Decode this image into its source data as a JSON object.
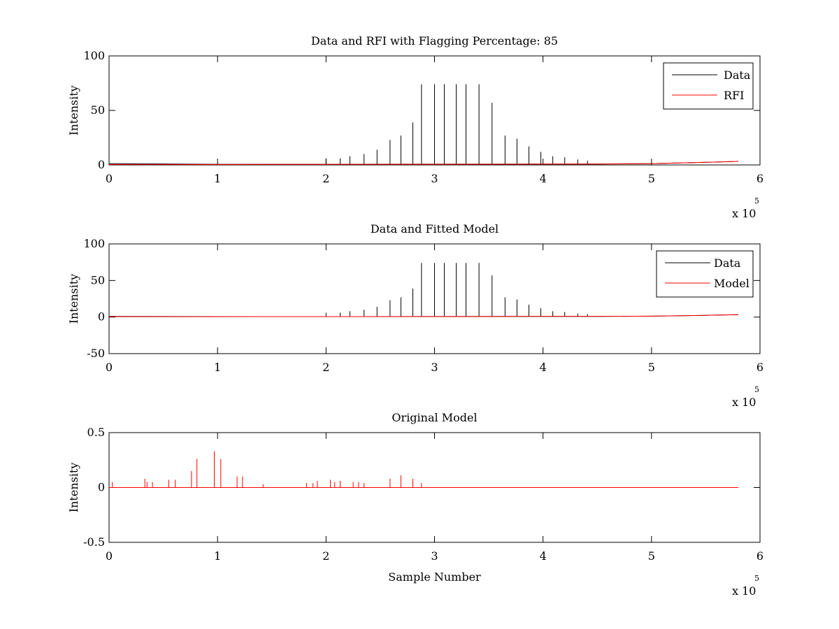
{
  "chart_data": [
    {
      "type": "line",
      "title": "Data and RFI with Flagging Percentage: 85",
      "xlabel": "",
      "ylabel": "Intensity",
      "xlim": [
        0,
        600000
      ],
      "ylim": [
        0,
        100
      ],
      "xticks": [
        0,
        1,
        2,
        3,
        4,
        5,
        6
      ],
      "xtick_labels": [
        "0",
        "1",
        "2",
        "3",
        "4",
        "5",
        "6"
      ],
      "yticks": [
        0,
        50,
        100
      ],
      "ytick_labels": [
        "0",
        "50",
        "100"
      ],
      "x_exponent": "x 10",
      "x_exponent_power": "5",
      "legend_position": "top-right",
      "series": [
        {
          "name": "Data",
          "color": "#000000",
          "baseline": [
            [
              0,
              1.2
            ],
            [
              100000,
              0.6
            ],
            [
              200000,
              0.6
            ],
            [
              300000,
              0.7
            ],
            [
              400000,
              0.8
            ],
            [
              450000,
              0.9
            ],
            [
              500000,
              1.2
            ],
            [
              550000,
              2.4
            ],
            [
              580000,
              3.3
            ]
          ],
          "spikes": [
            [
              200000,
              6
            ],
            [
              213000,
              6
            ],
            [
              222000,
              8
            ],
            [
              235000,
              10
            ],
            [
              247000,
              14
            ],
            [
              259000,
              23
            ],
            [
              269000,
              27
            ],
            [
              280000,
              39
            ],
            [
              288000,
              74
            ],
            [
              300000,
              74
            ],
            [
              309000,
              74
            ],
            [
              320000,
              74
            ],
            [
              329000,
              74
            ],
            [
              341000,
              74
            ],
            [
              353000,
              57
            ],
            [
              365000,
              27
            ],
            [
              376000,
              24
            ],
            [
              387000,
              17
            ],
            [
              398000,
              12
            ],
            [
              409000,
              8
            ],
            [
              420000,
              7
            ],
            [
              432000,
              5
            ],
            [
              441000,
              4
            ]
          ]
        },
        {
          "name": "RFI",
          "color": "#ff0000",
          "baseline": [
            [
              0,
              0.4
            ],
            [
              100000,
              0.4
            ],
            [
              200000,
              0.5
            ],
            [
              300000,
              0.6
            ],
            [
              400000,
              0.7
            ],
            [
              450000,
              0.8
            ],
            [
              500000,
              1.2
            ],
            [
              550000,
              2.4
            ],
            [
              580000,
              3.3
            ]
          ],
          "spikes": []
        }
      ]
    },
    {
      "type": "line",
      "title": "Data and Fitted Model",
      "xlabel": "",
      "ylabel": "Intensity",
      "xlim": [
        0,
        600000
      ],
      "ylim": [
        -50,
        100
      ],
      "xticks": [
        0,
        1,
        2,
        3,
        4,
        5,
        6
      ],
      "xtick_labels": [
        "0",
        "1",
        "2",
        "3",
        "4",
        "5",
        "6"
      ],
      "yticks": [
        -50,
        0,
        50,
        100
      ],
      "ytick_labels": [
        "-50",
        "0",
        "50",
        "100"
      ],
      "x_exponent": "x 10",
      "x_exponent_power": "5",
      "legend_position": "top-right",
      "series": [
        {
          "name": "Data",
          "color": "#000000",
          "baseline": [
            [
              0,
              1.0
            ],
            [
              100000,
              0.6
            ],
            [
              200000,
              0.6
            ],
            [
              300000,
              0.7
            ],
            [
              400000,
              0.8
            ],
            [
              450000,
              0.9
            ],
            [
              500000,
              1.2
            ],
            [
              550000,
              2.4
            ],
            [
              580000,
              3.3
            ]
          ],
          "spikes": [
            [
              200000,
              6
            ],
            [
              213000,
              6
            ],
            [
              222000,
              8
            ],
            [
              235000,
              10
            ],
            [
              247000,
              14
            ],
            [
              259000,
              23
            ],
            [
              269000,
              27
            ],
            [
              280000,
              39
            ],
            [
              288000,
              74
            ],
            [
              300000,
              74
            ],
            [
              309000,
              74
            ],
            [
              320000,
              74
            ],
            [
              329000,
              74
            ],
            [
              341000,
              74
            ],
            [
              353000,
              57
            ],
            [
              365000,
              27
            ],
            [
              376000,
              24
            ],
            [
              387000,
              17
            ],
            [
              398000,
              12
            ],
            [
              409000,
              8
            ],
            [
              420000,
              7
            ],
            [
              432000,
              5
            ],
            [
              441000,
              4
            ]
          ]
        },
        {
          "name": "Model",
          "color": "#ff0000",
          "baseline": [
            [
              0,
              0.6
            ],
            [
              100000,
              0.5
            ],
            [
              200000,
              0.6
            ],
            [
              300000,
              0.7
            ],
            [
              400000,
              0.8
            ],
            [
              450000,
              0.9
            ],
            [
              500000,
              1.2
            ],
            [
              550000,
              2.4
            ],
            [
              580000,
              3.3
            ]
          ],
          "spikes": []
        }
      ]
    },
    {
      "type": "line",
      "title": "Original Model",
      "xlabel": "Sample Number",
      "ylabel": "Intensity",
      "xlim": [
        0,
        600000
      ],
      "ylim": [
        -0.5,
        0.5
      ],
      "xticks": [
        0,
        1,
        2,
        3,
        4,
        5,
        6
      ],
      "xtick_labels": [
        "0",
        "1",
        "2",
        "3",
        "4",
        "5",
        "6"
      ],
      "yticks": [
        -0.5,
        0,
        0.5
      ],
      "ytick_labels": [
        "-0.5",
        "0",
        "0.5"
      ],
      "x_exponent": "x 10",
      "x_exponent_power": "5",
      "legend_position": "none",
      "series": [
        {
          "name": "",
          "color": "#ff0000",
          "baseline": [
            [
              0,
              0.0
            ],
            [
              580000,
              0.0
            ]
          ],
          "spikes": [
            [
              3000,
              0.05
            ],
            [
              33000,
              0.08
            ],
            [
              35000,
              0.05
            ],
            [
              40000,
              0.05
            ],
            [
              55000,
              0.07
            ],
            [
              61000,
              0.07
            ],
            [
              76000,
              0.15
            ],
            [
              81000,
              0.26
            ],
            [
              97000,
              0.33
            ],
            [
              103000,
              0.26
            ],
            [
              118000,
              0.1
            ],
            [
              123000,
              0.1
            ],
            [
              142000,
              0.03
            ],
            [
              182000,
              0.04
            ],
            [
              188000,
              0.04
            ],
            [
              192000,
              0.06
            ],
            [
              204000,
              0.07
            ],
            [
              208000,
              0.05
            ],
            [
              213000,
              0.06
            ],
            [
              225000,
              0.05
            ],
            [
              230000,
              0.05
            ],
            [
              235000,
              0.04
            ],
            [
              259000,
              0.08
            ],
            [
              269000,
              0.11
            ],
            [
              280000,
              0.08
            ],
            [
              288000,
              0.04
            ]
          ]
        }
      ]
    }
  ]
}
